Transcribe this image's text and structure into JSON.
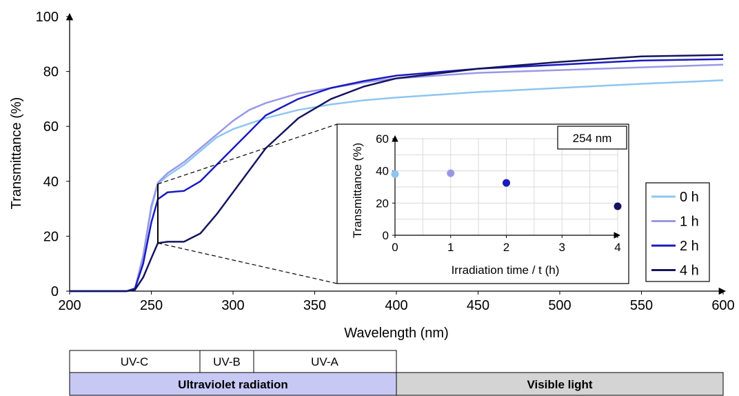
{
  "chart_data": [
    {
      "type": "line",
      "xlabel": "Wavelength (nm)",
      "ylabel": "Transmittance (%)",
      "xlim": [
        200,
        600
      ],
      "ylim": [
        0,
        100
      ],
      "xticks": [
        "200",
        "250",
        "300",
        "350",
        "400",
        "450",
        "500",
        "550",
        "600"
      ],
      "yticks": [
        "0",
        "20",
        "40",
        "60",
        "80",
        "100"
      ],
      "grid": false,
      "legend_position": "right",
      "marker_wavelength": 254,
      "series": [
        {
          "name": "0 h",
          "color": "#8EC5F2",
          "x": [
            200,
            235,
            240,
            245,
            250,
            254,
            260,
            270,
            280,
            290,
            300,
            310,
            320,
            340,
            360,
            380,
            400,
            450,
            500,
            550,
            600
          ],
          "y": [
            0,
            0,
            1,
            12,
            30,
            39,
            42,
            46,
            51,
            56,
            59,
            61,
            63,
            66,
            68,
            69.5,
            70.5,
            72.5,
            74,
            75.5,
            76.8
          ]
        },
        {
          "name": "1 h",
          "color": "#9898E6",
          "x": [
            200,
            235,
            240,
            245,
            250,
            254,
            260,
            270,
            280,
            290,
            300,
            310,
            320,
            340,
            360,
            380,
            400,
            450,
            500,
            550,
            600
          ],
          "y": [
            0,
            0,
            1,
            13,
            31,
            39.5,
            43,
            47,
            52,
            57,
            62,
            66,
            68.5,
            72,
            74,
            76,
            77.5,
            79.5,
            80.5,
            81.5,
            82.5
          ]
        },
        {
          "name": "2 h",
          "color": "#1A1ABF",
          "x": [
            200,
            235,
            240,
            245,
            250,
            254,
            260,
            270,
            280,
            290,
            300,
            310,
            320,
            340,
            360,
            380,
            400,
            450,
            500,
            550,
            600
          ],
          "y": [
            0,
            0,
            1,
            10,
            25,
            33.5,
            36,
            36.5,
            40,
            46,
            52,
            58,
            64,
            70,
            74,
            76.5,
            78.5,
            81,
            82.5,
            84,
            84.5
          ]
        },
        {
          "name": "4 h",
          "color": "#14145E",
          "x": [
            200,
            235,
            240,
            245,
            250,
            254,
            260,
            270,
            280,
            290,
            300,
            310,
            320,
            340,
            360,
            380,
            400,
            450,
            500,
            550,
            600
          ],
          "y": [
            0,
            0,
            0.5,
            5,
            12,
            17.5,
            18,
            18,
            21,
            28,
            36,
            44,
            52,
            63,
            70,
            74.5,
            77.5,
            81,
            83.5,
            85.5,
            86
          ]
        }
      ]
    },
    {
      "type": "scatter",
      "title": "254 nm",
      "xlabel": "Irradiation time / t (h)",
      "ylabel": "Transmittance (%)",
      "xlim": [
        0,
        4
      ],
      "ylim": [
        0,
        60
      ],
      "xticks": [
        "0",
        "1",
        "2",
        "3",
        "4"
      ],
      "yticks": [
        "0",
        "20",
        "40",
        "60"
      ],
      "grid": true,
      "points": [
        {
          "x": 0,
          "y": 38,
          "color": "#8EC5F2"
        },
        {
          "x": 1,
          "y": 38.5,
          "color": "#9898E6"
        },
        {
          "x": 2,
          "y": 32.5,
          "color": "#1A1ABF"
        },
        {
          "x": 4,
          "y": 18,
          "color": "#14145E"
        }
      ]
    }
  ],
  "spectrum_bands": {
    "uv_c": "UV-C",
    "uv_b": "UV-B",
    "uv_a": "UV-A",
    "ultraviolet": "Ultraviolet radiation",
    "visible": "Visible light",
    "uv_color": "#C8C8F5",
    "visible_color": "#D4D4D4"
  }
}
